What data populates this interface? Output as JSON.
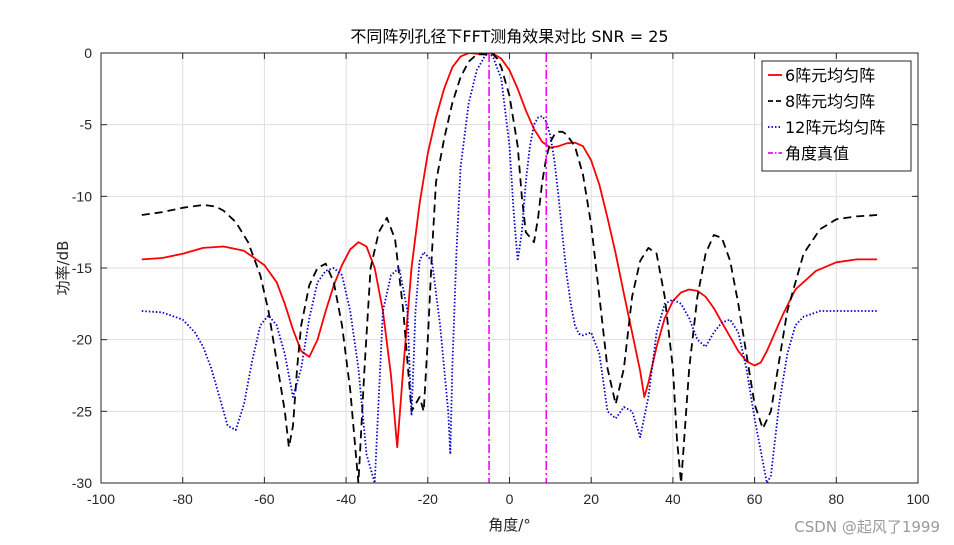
{
  "chart_data": {
    "type": "line",
    "title": "不同阵列孔径下FFT测角效果对比 SNR = 25",
    "xlabel": "角度/°",
    "ylabel": "功率/dB",
    "xlim": [
      -100,
      100
    ],
    "ylim": [
      -30,
      0
    ],
    "xticks": [
      -100,
      -80,
      -60,
      -40,
      -20,
      0,
      20,
      40,
      60,
      80,
      100
    ],
    "yticks": [
      0,
      -5,
      -10,
      -15,
      -20,
      -25,
      -30
    ],
    "grid": true,
    "legend_position": "top-right",
    "series": [
      {
        "name": "6阵元均匀阵",
        "color": "#ff0000",
        "style": "solid",
        "x": [
          -90,
          -85,
          -80,
          -75,
          -70,
          -65,
          -60,
          -57,
          -55,
          -53,
          -51,
          -49,
          -47,
          -45,
          -43,
          -41,
          -39,
          -37,
          -35,
          -33,
          -31,
          -29,
          -27.5,
          -26,
          -24,
          -22,
          -20,
          -18,
          -16,
          -14,
          -12,
          -10,
          -8,
          -6,
          -5,
          -4,
          -2,
          0,
          2,
          4,
          6,
          8,
          10,
          12,
          14,
          16,
          18,
          20,
          22,
          24,
          26,
          28,
          30,
          32,
          33,
          34,
          36,
          38,
          40,
          42,
          44,
          46,
          48,
          50,
          52,
          54,
          56,
          58,
          60,
          61.5,
          63,
          65,
          67,
          70,
          75,
          80,
          85,
          90
        ],
        "y": [
          -14.4,
          -14.3,
          -14.0,
          -13.6,
          -13.5,
          -13.8,
          -14.8,
          -16.0,
          -17.5,
          -19.3,
          -20.8,
          -21.2,
          -20.0,
          -18.0,
          -16.2,
          -14.8,
          -13.7,
          -13.2,
          -13.5,
          -15.0,
          -18.0,
          -22.5,
          -27.5,
          -22.0,
          -15.0,
          -10.5,
          -7.0,
          -4.5,
          -2.5,
          -1.0,
          -0.25,
          0,
          -0.05,
          -0.1,
          0,
          -0.05,
          -0.4,
          -1.2,
          -2.5,
          -4.0,
          -5.3,
          -6.2,
          -6.6,
          -6.5,
          -6.3,
          -6.25,
          -6.5,
          -7.5,
          -9.2,
          -11.5,
          -14.0,
          -16.8,
          -19.5,
          -22.2,
          -24.0,
          -23.0,
          -20.5,
          -18.5,
          -17.3,
          -16.7,
          -16.5,
          -16.6,
          -17.0,
          -17.8,
          -18.8,
          -19.8,
          -20.8,
          -21.5,
          -21.8,
          -21.6,
          -20.8,
          -19.5,
          -18.2,
          -16.5,
          -15.2,
          -14.6,
          -14.4,
          -14.4
        ]
      },
      {
        "name": "8阵元均匀阵",
        "color": "#000000",
        "style": "dashed",
        "x": [
          -90,
          -85,
          -80,
          -75,
          -72,
          -70,
          -67,
          -64,
          -61,
          -59,
          -57,
          -55,
          -54,
          -53,
          -52,
          -51,
          -49,
          -47,
          -45,
          -43,
          -41,
          -39,
          -37,
          -35.5,
          -34,
          -32,
          -30,
          -28,
          -26,
          -24,
          -22,
          -21,
          -20,
          -19,
          -18,
          -16,
          -14,
          -12,
          -10,
          -8,
          -6,
          -5,
          -4,
          -3,
          -2,
          0,
          2,
          3,
          4,
          6,
          7,
          8,
          9,
          10,
          11,
          12,
          13,
          14,
          16,
          18,
          20,
          22,
          24,
          26,
          28,
          30,
          32,
          34,
          36,
          38,
          40,
          41,
          42,
          44,
          46,
          48,
          50,
          52,
          54,
          56,
          58,
          60,
          62,
          64,
          66,
          68,
          72,
          76,
          80,
          85,
          90
        ],
        "y": [
          -11.3,
          -11.1,
          -10.8,
          -10.6,
          -10.7,
          -11.0,
          -11.8,
          -13.2,
          -15.5,
          -18.0,
          -21.5,
          -25.0,
          -27.5,
          -26.0,
          -22.0,
          -19.0,
          -16.2,
          -15.0,
          -14.7,
          -16.0,
          -19.0,
          -23.5,
          -30.0,
          -22.0,
          -15.0,
          -12.5,
          -11.5,
          -13.0,
          -18.0,
          -25.0,
          -24.0,
          -25.0,
          -20.0,
          -14.0,
          -9.0,
          -6.0,
          -3.5,
          -1.7,
          -0.6,
          -0.1,
          -0.1,
          0,
          -0.1,
          -0.4,
          -1.0,
          -3.0,
          -6.5,
          -10.0,
          -12.5,
          -13.2,
          -11.5,
          -9.0,
          -7.3,
          -6.2,
          -5.7,
          -5.5,
          -5.5,
          -5.7,
          -6.5,
          -8.5,
          -12.0,
          -17.0,
          -22.0,
          -24.5,
          -22.0,
          -17.0,
          -14.5,
          -13.6,
          -14.0,
          -17.0,
          -22.0,
          -27.0,
          -30.0,
          -22.0,
          -17.0,
          -14.0,
          -12.7,
          -12.9,
          -14.5,
          -17.5,
          -21.0,
          -24.5,
          -26.2,
          -25.0,
          -21.5,
          -18.0,
          -14.0,
          -12.3,
          -11.6,
          -11.4,
          -11.3
        ]
      },
      {
        "name": "12阵元均匀阵",
        "color": "#0000cc",
        "style": "dotted",
        "x": [
          -90,
          -85,
          -80,
          -77,
          -75,
          -73,
          -71,
          -69,
          -67,
          -65,
          -63,
          -61,
          -59,
          -57,
          -55,
          -53,
          -51,
          -49,
          -47,
          -45,
          -43,
          -41,
          -39,
          -37,
          -35,
          -33,
          -31,
          -29,
          -27,
          -25,
          -24,
          -23,
          -22,
          -21,
          -19,
          -17,
          -15,
          -14.5,
          -14,
          -13,
          -12,
          -10,
          -8,
          -6,
          -5,
          -4,
          -2,
          0,
          1,
          2,
          3,
          4,
          5,
          6,
          7,
          8,
          9,
          10,
          11,
          12,
          13,
          14,
          15,
          16,
          17,
          18,
          20,
          22,
          24,
          26,
          28,
          30,
          32,
          34,
          36,
          38,
          40,
          42,
          44,
          46,
          48,
          50,
          52,
          54,
          56,
          58,
          60,
          62,
          63,
          64,
          65,
          66,
          68,
          70,
          72,
          74,
          76,
          80,
          85,
          90
        ],
        "y": [
          -18.0,
          -18.1,
          -18.6,
          -19.5,
          -20.5,
          -22.0,
          -24.0,
          -26.0,
          -26.3,
          -24.5,
          -21.5,
          -19.0,
          -18.3,
          -19.0,
          -21.0,
          -24.0,
          -22.0,
          -18.5,
          -16.0,
          -15.2,
          -15.0,
          -15.5,
          -18.0,
          -22.0,
          -28.0,
          -30.0,
          -18.0,
          -15.5,
          -15.0,
          -18.0,
          -25.3,
          -18.0,
          -14.5,
          -13.9,
          -14.5,
          -19.0,
          -25.0,
          -28.0,
          -22.0,
          -14.0,
          -8.0,
          -3.5,
          -1.2,
          -0.2,
          0,
          -0.3,
          -1.8,
          -6.5,
          -11.0,
          -14.5,
          -12.5,
          -9.0,
          -6.5,
          -5.0,
          -4.5,
          -4.4,
          -4.8,
          -5.8,
          -7.5,
          -10.0,
          -12.8,
          -15.5,
          -17.5,
          -19.0,
          -19.6,
          -19.7,
          -19.5,
          -21.0,
          -25.0,
          -25.5,
          -24.7,
          -25.0,
          -26.8,
          -24.0,
          -19.5,
          -17.5,
          -17.2,
          -17.5,
          -18.5,
          -20.0,
          -20.5,
          -19.5,
          -18.8,
          -18.6,
          -19.5,
          -22.0,
          -25.5,
          -28.5,
          -30.0,
          -29.5,
          -27.0,
          -24.5,
          -21.0,
          -19.0,
          -18.4,
          -18.2,
          -18.0,
          -18.0,
          -18.0,
          -18.0
        ]
      },
      {
        "name": "角度真值",
        "color": "#ff00ff",
        "style": "dashdot",
        "vlines": [
          -5,
          9
        ]
      }
    ]
  },
  "watermark": "CSDN @起风了1999"
}
